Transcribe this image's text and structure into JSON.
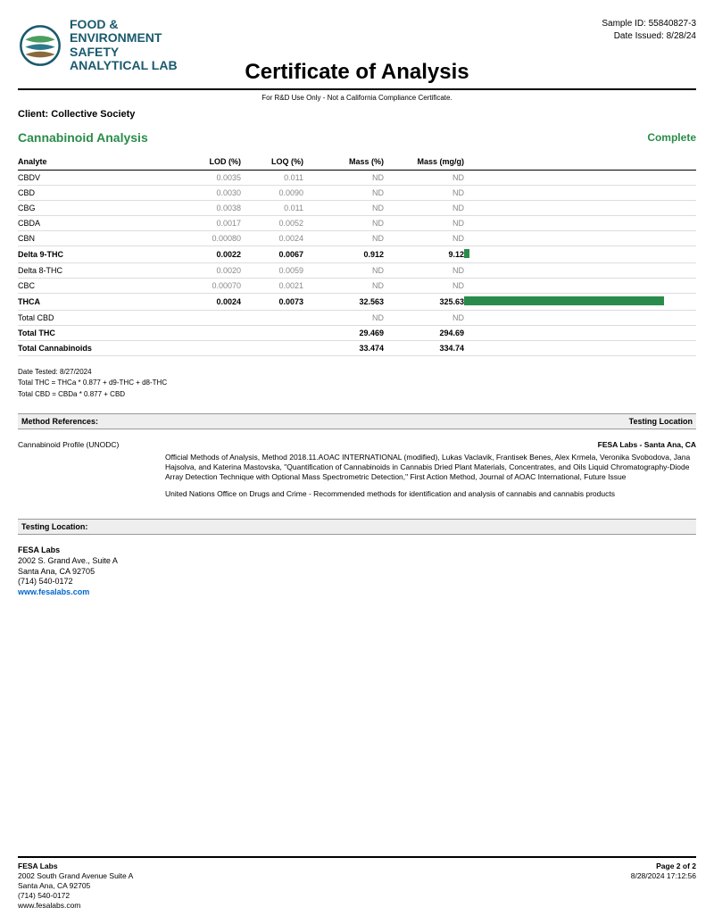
{
  "header": {
    "logoText": "FOOD &\nENVIRONMENT\nSAFETY\nANALYTICAL LAB",
    "sampleIdLabel": "Sample ID: 55840827-3",
    "dateIssuedLabel": "Date Issued: 8/28/24",
    "title": "Certificate of Analysis",
    "subtitle": "For R&D Use Only - Not a California Compliance Certificate.",
    "client": "Client: Collective Society"
  },
  "section": {
    "title": "Cannabinoid Analysis",
    "status": "Complete"
  },
  "table": {
    "headers": {
      "analyte": "Analyte",
      "lod": "LOD (%)",
      "loq": "LOQ (%)",
      "massPc": "Mass (%)",
      "massMg": "Mass (mg/g)"
    },
    "maxBarValue": 334.74,
    "rows": [
      {
        "analyte": "CBDV",
        "lod": "0.0035",
        "loq": "0.011",
        "massPc": "ND",
        "massMg": "ND",
        "bold": false,
        "barVal": 0
      },
      {
        "analyte": "CBD",
        "lod": "0.0030",
        "loq": "0.0090",
        "massPc": "ND",
        "massMg": "ND",
        "bold": false,
        "barVal": 0
      },
      {
        "analyte": "CBG",
        "lod": "0.0038",
        "loq": "0.011",
        "massPc": "ND",
        "massMg": "ND",
        "bold": false,
        "barVal": 0
      },
      {
        "analyte": "CBDA",
        "lod": "0.0017",
        "loq": "0.0052",
        "massPc": "ND",
        "massMg": "ND",
        "bold": false,
        "barVal": 0
      },
      {
        "analyte": "CBN",
        "lod": "0.00080",
        "loq": "0.0024",
        "massPc": "ND",
        "massMg": "ND",
        "bold": false,
        "barVal": 0
      },
      {
        "analyte": "Delta 9-THC",
        "lod": "0.0022",
        "loq": "0.0067",
        "massPc": "0.912",
        "massMg": "9.12",
        "bold": true,
        "barVal": 9.12
      },
      {
        "analyte": "Delta 8-THC",
        "lod": "0.0020",
        "loq": "0.0059",
        "massPc": "ND",
        "massMg": "ND",
        "bold": false,
        "barVal": 0
      },
      {
        "analyte": "CBC",
        "lod": "0.00070",
        "loq": "0.0021",
        "massPc": "ND",
        "massMg": "ND",
        "bold": false,
        "barVal": 0
      },
      {
        "analyte": "THCA",
        "lod": "0.0024",
        "loq": "0.0073",
        "massPc": "32.563",
        "massMg": "325.63",
        "bold": true,
        "barVal": 325.63
      },
      {
        "analyte": "Total CBD",
        "lod": "",
        "loq": "",
        "massPc": "ND",
        "massMg": "ND",
        "bold": false,
        "barVal": 0
      },
      {
        "analyte": "Total THC",
        "lod": "",
        "loq": "",
        "massPc": "29.469",
        "massMg": "294.69",
        "bold": true,
        "barVal": 0
      },
      {
        "analyte": "Total Cannabinoids",
        "lod": "",
        "loq": "",
        "massPc": "33.474",
        "massMg": "334.74",
        "bold": true,
        "barVal": 0
      }
    ]
  },
  "notes": {
    "line1": "Date Tested: 8/27/2024",
    "line2": "Total THC = THCa * 0.877 + d9-THC + d8-THC",
    "line3": "Total CBD = CBDa * 0.877 + CBD"
  },
  "methodRefs": {
    "barLeft": "Method References:",
    "barRight": "Testing Location",
    "methodName": "Cannabinoid Profile (UNODC)",
    "labName": "FESA Labs - Santa Ana, CA",
    "para1": "Official Methods of Analysis, Method 2018.11.AOAC INTERNATIONAL (modified), Lukas Vaclavik, Frantisek Benes, Alex Krmela, Veronika Svobodova, Jana Hajsolva, and Katerina Mastovska, \"Quantification of Cannabinoids in Cannabis Dried Plant Materials, Concentrates, and Oils Liquid Chromatography-Diode Array Detection Technique with Optional Mass Spectrometric Detection,\" First Action Method, Journal of AOAC International, Future Issue",
    "para2": "United Nations Office on Drugs and Crime - Recommended methods for identification and analysis of cannabis and cannabis products"
  },
  "testingLocation": {
    "bar": "Testing Location:",
    "name": "FESA Labs",
    "addr1": "2002 S. Grand Ave., Suite A",
    "addr2": "Santa Ana, CA 92705",
    "phone": "(714) 540-0172",
    "url": "www.fesalabs.com"
  },
  "footer": {
    "name": "FESA Labs",
    "addr1": "2002 South Grand Avenue Suite A",
    "addr2": "Santa Ana, CA 92705",
    "phone": "(714) 540-0172",
    "url": "www.fesalabs.com",
    "page": "Page 2 of 2",
    "timestamp": "8/28/2024 17:12:56"
  },
  "colors": {
    "green": "#2a8c4a",
    "logoBlue": "#1a5a6e",
    "link": "#0066cc",
    "grayText": "#888888"
  },
  "barFullWidthPx": 230
}
